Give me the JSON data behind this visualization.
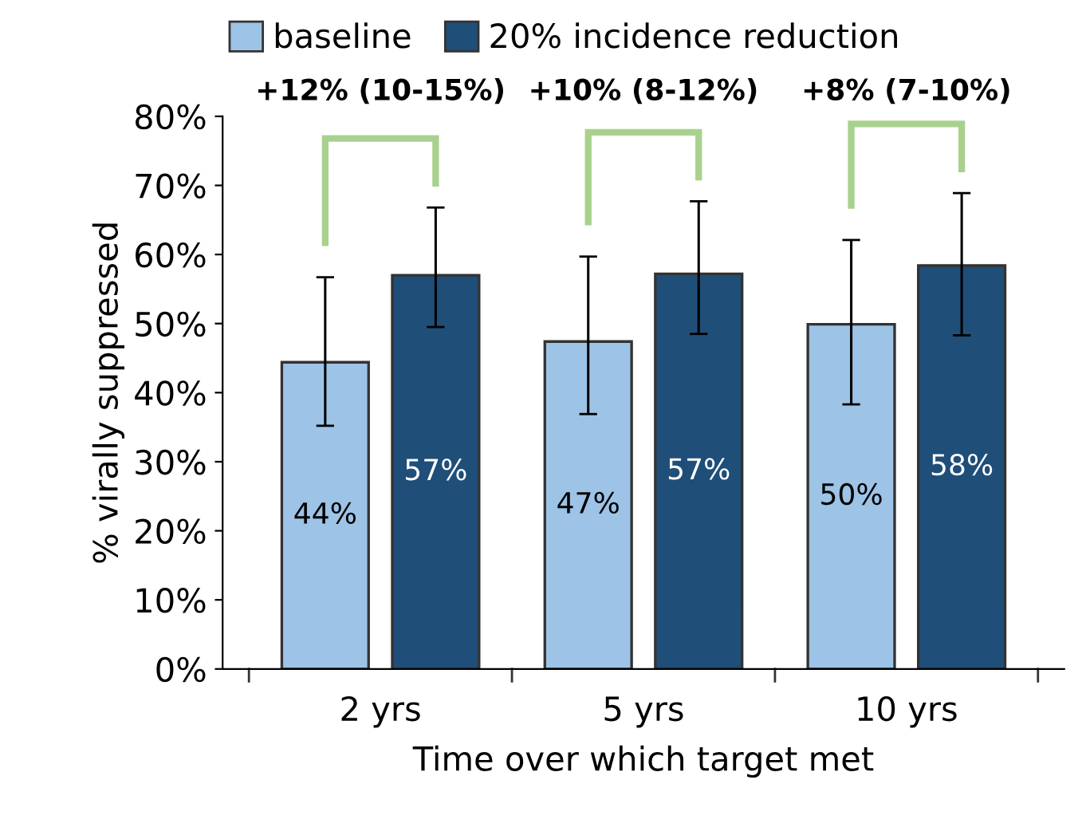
{
  "chart_data": {
    "type": "bar",
    "categories": [
      "2 yrs",
      "5 yrs",
      "10 yrs"
    ],
    "series": [
      {
        "name": "baseline",
        "color": "#9dc3e6",
        "values": [
          44.4,
          47.4,
          49.9
        ],
        "errors": [
          [
            35.2,
            56.7
          ],
          [
            36.9,
            59.7
          ],
          [
            38.3,
            62.1
          ]
        ],
        "value_labels": [
          "44%",
          "47%",
          "50%"
        ]
      },
      {
        "name": "20% incidence reduction",
        "color": "#1f4e79",
        "values": [
          57.0,
          57.2,
          58.4
        ],
        "errors": [
          [
            49.5,
            66.8
          ],
          [
            48.5,
            67.7
          ],
          [
            48.3,
            68.9
          ]
        ],
        "value_labels": [
          "57%",
          "57%",
          "58%"
        ]
      }
    ],
    "xlabel": "Time over which target met",
    "ylabel": "% virally suppressed",
    "ylim": [
      0,
      80
    ],
    "yticks": [
      {
        "value": 0,
        "label": "0%"
      },
      {
        "value": 10,
        "label": "10%"
      },
      {
        "value": 20,
        "label": "20%"
      },
      {
        "value": 30,
        "label": "30%"
      },
      {
        "value": 40,
        "label": "40%"
      },
      {
        "value": 50,
        "label": "50%"
      },
      {
        "value": 60,
        "label": "60%"
      },
      {
        "value": 70,
        "label": "70%"
      },
      {
        "value": 80,
        "label": "80%"
      }
    ],
    "annotations": [
      "+12% (10-15%)",
      "+10% (8-12%)",
      "+8% (7-10%)"
    ],
    "legend": "top",
    "grid": false
  }
}
